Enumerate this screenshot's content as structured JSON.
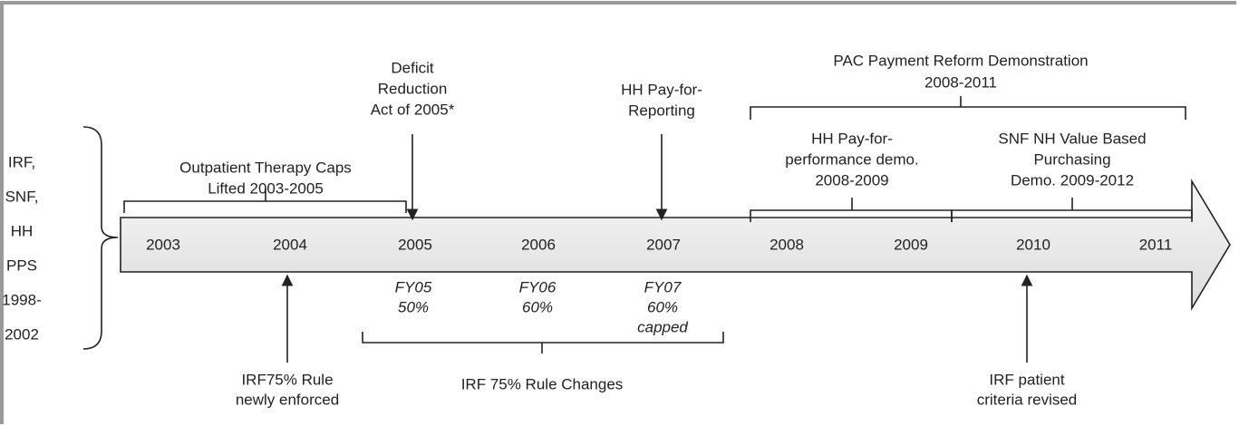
{
  "left_label": [
    "IRF,",
    "SNF,",
    "HH",
    "PPS",
    "1998-",
    "2002"
  ],
  "years": [
    "2003",
    "2004",
    "2005",
    "2006",
    "2007",
    "2008",
    "2009",
    "2010",
    "2011"
  ],
  "above": [
    {
      "lines": [
        "Outpatient Therapy Caps",
        "Lifted 2003-2005"
      ]
    },
    {
      "lines": [
        "Deficit",
        "Reduction",
        "Act of 2005*"
      ]
    },
    {
      "lines": [
        "HH Pay-for-",
        "Reporting"
      ]
    },
    {
      "lines": [
        "PAC Payment Reform Demonstration",
        "2008-2011"
      ]
    },
    {
      "lines": [
        "HH  Pay-for-",
        "performance demo.",
        "2008-2009"
      ]
    },
    {
      "lines": [
        "SNF NH Value Based",
        "Purchasing",
        "Demo. 2009-2012"
      ]
    }
  ],
  "below": [
    {
      "lines": [
        "FY05",
        "50%"
      ]
    },
    {
      "lines": [
        "FY06",
        "60%"
      ]
    },
    {
      "lines": [
        "FY07",
        "60%",
        "capped"
      ]
    },
    {
      "lines": [
        "IRF 75% Rule Changes"
      ]
    },
    {
      "lines": [
        "IRF75% Rule",
        "newly enforced"
      ]
    },
    {
      "lines": [
        "IRF patient",
        "criteria revised"
      ]
    }
  ]
}
